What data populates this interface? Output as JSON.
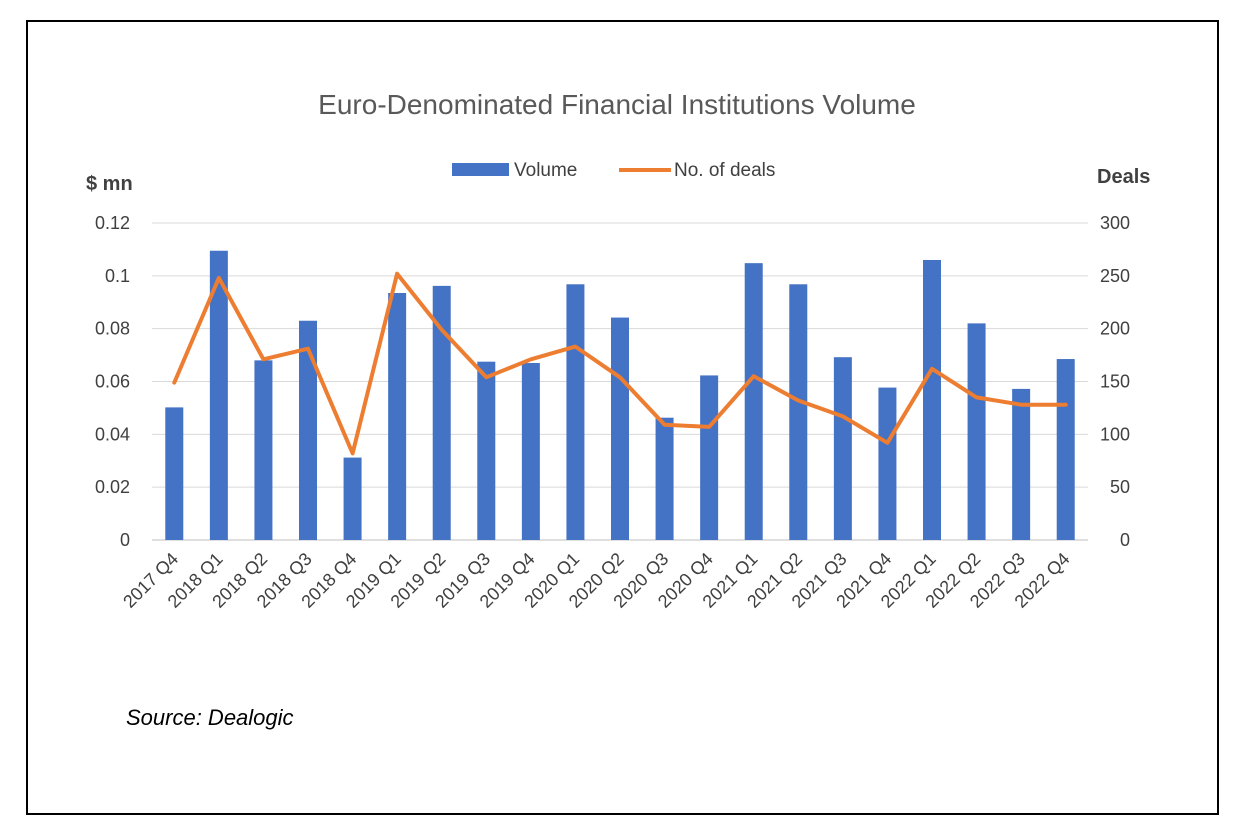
{
  "chart_data": {
    "type": "bar",
    "title": "Euro-Denominated Financial Institutions Volume",
    "y_left_label": "$ mn",
    "y_right_label": "Deals",
    "y_left_lim": [
      0,
      0.12
    ],
    "y_left_ticks": [
      "0",
      "0.02",
      "0.04",
      "0.06",
      "0.08",
      "0.1",
      "0.12"
    ],
    "y_right_lim": [
      0,
      300
    ],
    "y_right_ticks": [
      "0",
      "50",
      "100",
      "150",
      "200",
      "250",
      "300"
    ],
    "grid": true,
    "legend_position": "top",
    "categories": [
      "2017 Q4",
      "2018 Q1",
      "2018 Q2",
      "2018 Q3",
      "2018 Q4",
      "2019 Q1",
      "2019 Q2",
      "2019 Q3",
      "2019 Q4",
      "2020 Q1",
      "2020 Q2",
      "2020 Q3",
      "2020 Q4",
      "2021 Q1",
      "2021 Q2",
      "2021 Q3",
      "2021 Q4",
      "2022 Q1",
      "2022 Q2",
      "2022 Q3",
      "2022 Q4"
    ],
    "series": [
      {
        "name": "Volume",
        "type": "bar",
        "axis": "left",
        "color": "#4472C4",
        "values": [
          0.0502,
          0.1095,
          0.068,
          0.083,
          0.0312,
          0.0935,
          0.0962,
          0.0675,
          0.067,
          0.0968,
          0.0842,
          0.0463,
          0.0623,
          0.1048,
          0.0968,
          0.0692,
          0.0577,
          0.106,
          0.082,
          0.0572,
          0.0685
        ]
      },
      {
        "name": "No. of deals",
        "type": "line",
        "axis": "right",
        "color": "#ED7D31",
        "values": [
          149,
          248,
          171,
          181,
          82,
          252,
          199,
          154,
          171,
          183,
          154,
          109,
          107,
          155,
          132,
          117,
          92,
          162,
          135,
          128,
          128
        ]
      }
    ]
  },
  "source": "Source: Dealogic"
}
